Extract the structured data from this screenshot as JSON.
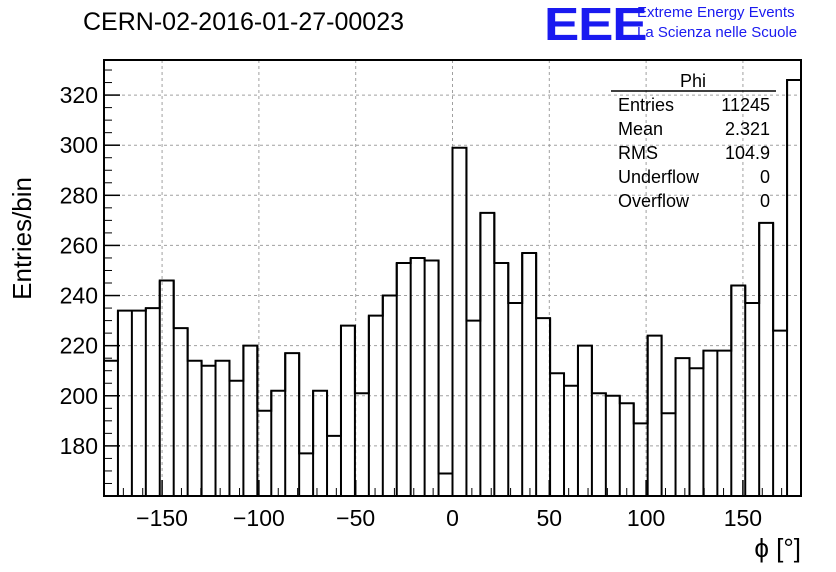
{
  "header": {
    "title": "CERN-02-2016-01-27-00023",
    "logo_text": "EEE",
    "logo_line1": "Extreme Energy Events",
    "logo_line2": "La Scienza nelle Scuole"
  },
  "colors": {
    "logo": "#1a1af0",
    "line": "#000000",
    "grid": "#a0a0a0"
  },
  "stats_box": {
    "title": "Phi",
    "rows": [
      {
        "label": "Entries",
        "value": "11245"
      },
      {
        "label": "Mean",
        "value": "2.321"
      },
      {
        "label": "RMS",
        "value": "104.9"
      },
      {
        "label": "Underflow",
        "value": "0"
      },
      {
        "label": "Overflow",
        "value": "0"
      }
    ]
  },
  "chart_data": {
    "type": "histogram",
    "xlabel": "ϕ [°]",
    "ylabel": "Entries/bin",
    "xlim": [
      -180,
      180
    ],
    "ylim": [
      160,
      334
    ],
    "bin_width": 7.2,
    "xticks": [
      -150,
      -100,
      -50,
      0,
      50,
      100,
      150
    ],
    "xtick_labels": [
      "−150",
      "−100",
      "−50",
      "0",
      "50",
      "100",
      "150"
    ],
    "yticks": [
      180,
      200,
      220,
      240,
      260,
      280,
      300,
      320
    ],
    "grid": true,
    "values": [
      214,
      234,
      234,
      235,
      246,
      227,
      214,
      212,
      214,
      206,
      220,
      194,
      202,
      217,
      177,
      202,
      184,
      228,
      201,
      232,
      240,
      253,
      255,
      254,
      169,
      299,
      230,
      273,
      253,
      237,
      257,
      231,
      209,
      204,
      220,
      201,
      200,
      197,
      189,
      224,
      193,
      215,
      211,
      218,
      218,
      244,
      237,
      269,
      226,
      326
    ]
  }
}
